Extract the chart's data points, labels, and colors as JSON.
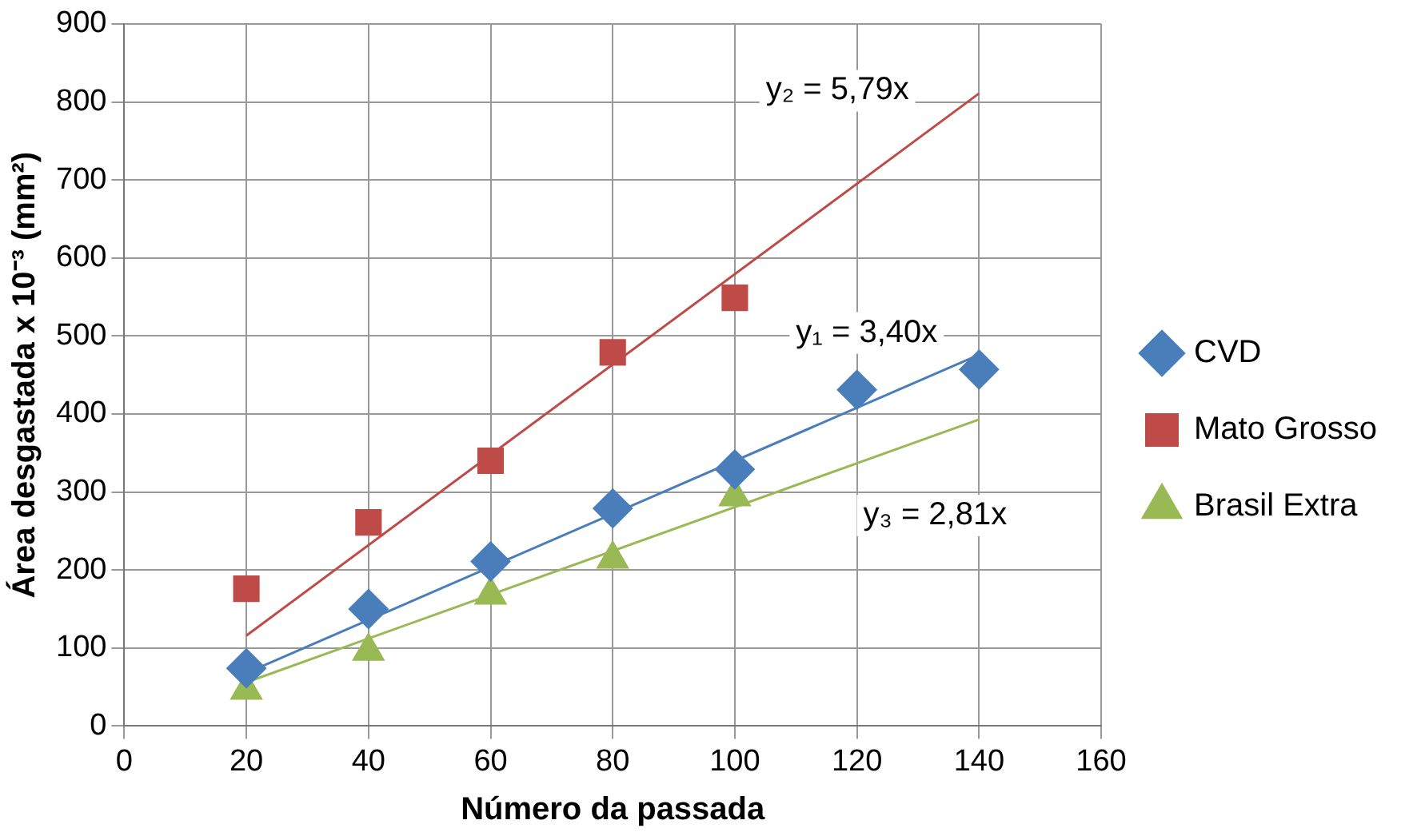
{
  "chart_data": {
    "type": "scatter",
    "xlabel": "Número da passada",
    "ylabel": "Área desgastada x 10⁻³ (mm²)",
    "xlim": [
      0,
      160
    ],
    "xticks": [
      0,
      20,
      40,
      60,
      80,
      100,
      120,
      140,
      160
    ],
    "ylim": [
      0,
      900
    ],
    "yticks": [
      0,
      100,
      200,
      300,
      400,
      500,
      600,
      700,
      800,
      900
    ],
    "grid": true,
    "legend": "right",
    "series": [
      {
        "name": "CVD",
        "color": "#4a7ebb",
        "marker": "diamond",
        "x": [
          20,
          40,
          60,
          80,
          100,
          120,
          140
        ],
        "values": [
          74,
          150,
          211,
          279,
          329,
          431,
          457
        ]
      },
      {
        "name": "Mato Grosso",
        "color": "#be4b48",
        "marker": "square",
        "x": [
          20,
          40,
          60,
          80,
          100
        ],
        "values": [
          176,
          261,
          340,
          479,
          549
        ]
      },
      {
        "name": "Brasil Extra",
        "color": "#98b954",
        "marker": "triangle",
        "x": [
          20,
          40,
          60,
          80,
          100
        ],
        "values": [
          46,
          96,
          168,
          214,
          294
        ]
      },
      {
        "type": "line",
        "color": "#4a7ebb",
        "marker": "none",
        "x": [
          20,
          140
        ],
        "values": [
          68,
          476
        ]
      },
      {
        "type": "line",
        "color": "#be4b48",
        "marker": "none",
        "x": [
          20,
          140
        ],
        "values": [
          116,
          811
        ]
      },
      {
        "type": "line",
        "color": "#98b954",
        "marker": "none",
        "x": [
          20,
          140
        ],
        "values": [
          56,
          393
        ]
      }
    ],
    "annotations": [
      "y₂ = 5,79x",
      "y₁ = 3,40x",
      "y₃ = 2,81x"
    ]
  }
}
